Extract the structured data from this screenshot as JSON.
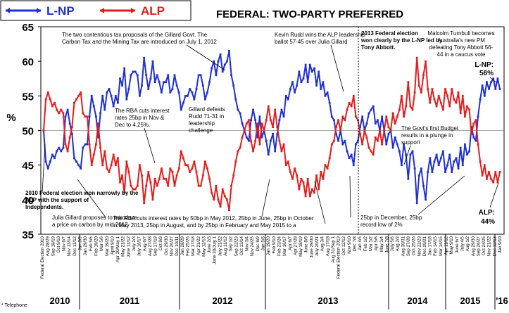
{
  "chart_data": {
    "type": "line",
    "title": "FEDERAL: TWO-PARTY PREFERRED",
    "ylabel": "%",
    "ylim": [
      35,
      65
    ],
    "yticks": [
      35,
      40,
      45,
      50,
      55,
      60,
      65
    ],
    "legend": {
      "placement": "top-left"
    },
    "colors": {
      "L-NP": "#1f2fd6",
      "ALP": "#e61b1b"
    },
    "series": [
      {
        "name": "L-NP",
        "color": "#1f2fd6",
        "values": [
          50,
          45.5,
          44.5,
          45.5,
          46.5,
          46,
          47,
          47.5,
          47,
          47.5,
          52,
          53,
          51,
          49.5,
          46,
          45.5,
          45,
          44.5,
          47.5,
          48,
          48,
          52,
          55,
          53.5,
          52,
          49,
          52.5,
          55,
          53,
          55.5,
          56,
          55,
          53.5,
          55,
          54,
          57.5,
          56.5,
          59,
          54.5,
          56,
          58,
          58.5,
          58.5,
          58,
          55,
          56.5,
          60.5,
          58,
          56,
          57.5,
          60,
          57,
          58,
          57,
          55.5,
          57,
          57,
          58,
          55.5,
          56,
          58,
          56.5,
          55.5,
          53,
          54,
          55,
          55,
          56,
          55.5,
          54.5,
          56,
          58,
          58,
          56.5,
          54.5,
          55.5,
          57,
          59,
          60,
          58,
          60,
          61,
          58.5,
          59.5,
          60,
          61.5,
          58,
          56.5,
          54.5,
          53,
          52.5,
          51,
          50,
          49,
          48.5,
          51.5,
          53,
          51.5,
          49,
          52,
          49,
          50,
          48.5,
          46.5,
          48.5,
          49.5,
          47,
          49.5,
          51.5,
          53,
          52,
          55,
          54.5,
          56,
          57,
          55.5,
          56.5,
          58.5,
          57,
          57.5,
          59.5,
          57,
          59.5,
          58.5,
          59,
          56.5,
          58.5,
          56,
          57,
          55,
          55.5,
          54,
          52,
          51.5,
          49.5,
          48.5,
          50,
          48,
          48.5,
          47,
          46,
          46.5,
          45,
          48,
          48.5,
          50.5,
          52,
          50,
          51,
          52.5,
          53,
          53.5,
          51,
          51.5,
          50,
          52,
          50,
          48,
          49.5,
          50,
          47.5,
          49,
          48,
          47,
          45,
          48,
          46.5,
          43,
          46.5,
          47,
          44.5,
          39.5,
          43.5,
          44.5,
          42,
          40,
          44,
          46,
          44,
          45.5,
          46.5,
          45,
          46,
          47,
          44,
          45,
          46.5,
          44,
          45.5,
          46,
          44.5,
          47.5,
          45,
          48,
          46.5,
          47,
          50.5,
          49,
          48.5,
          52,
          54.5,
          56.5,
          55,
          57,
          56,
          57,
          57.5,
          56,
          57.5,
          56
        ],
        "end_label": "L-NP: 56%"
      },
      {
        "name": "ALP",
        "color": "#e61b1b",
        "values": [
          50,
          54.5,
          55.5,
          54.5,
          53.5,
          54,
          53,
          52.5,
          53,
          52.5,
          48,
          47,
          49,
          50.5,
          54,
          54.5,
          55,
          55.5,
          52.5,
          52,
          52,
          48,
          45,
          46.5,
          48,
          51,
          47.5,
          45,
          47,
          44.5,
          44,
          45,
          46.5,
          45,
          46,
          42.5,
          43.5,
          41,
          45.5,
          44,
          42,
          41.5,
          41.5,
          42,
          45,
          43.5,
          39.5,
          42,
          44,
          42.5,
          40,
          43,
          42,
          43,
          44.5,
          43,
          43,
          42,
          44.5,
          44,
          42,
          43.5,
          44.5,
          47,
          46,
          45,
          45,
          44,
          44.5,
          45.5,
          44,
          42,
          42,
          43.5,
          45.5,
          44.5,
          43,
          41,
          40,
          42,
          40,
          39,
          41.5,
          40.5,
          40,
          38.5,
          42,
          43.5,
          45.5,
          47,
          47.5,
          49,
          50,
          51,
          51.5,
          48.5,
          47,
          48.5,
          51,
          48,
          51,
          50,
          51.5,
          53.5,
          51.5,
          50.5,
          53,
          50.5,
          48.5,
          47,
          48,
          45,
          45.5,
          44,
          43,
          44.5,
          43.5,
          41.5,
          43,
          42.5,
          40.5,
          43,
          40.5,
          41.5,
          41,
          43.5,
          41.5,
          44,
          43,
          45,
          44.5,
          46,
          48,
          48.5,
          50.5,
          51.5,
          50,
          52,
          51.5,
          53,
          54,
          53.5,
          55,
          52,
          51.5,
          49.5,
          48,
          50,
          49,
          47.5,
          47,
          46.5,
          49,
          48.5,
          50,
          48,
          50,
          52,
          50.5,
          50,
          52.5,
          51,
          52,
          53,
          55,
          52,
          53.5,
          57,
          53.5,
          53,
          55.5,
          60.5,
          56.5,
          55.5,
          58,
          60,
          56,
          54,
          56,
          54.5,
          53.5,
          55,
          54,
          53,
          56,
          55,
          53.5,
          56,
          54.5,
          54,
          55.5,
          52.5,
          55,
          52,
          53.5,
          53,
          49.5,
          51,
          51.5,
          48,
          45.5,
          43.5,
          45,
          43,
          44,
          43,
          42.5,
          44,
          42.5,
          44
        ],
        "end_label": "ALP: 44%"
      }
    ],
    "x_tick_labels": [
      "Federal Election 2010",
      "Aug 28/29",
      "Sep 18/19",
      "Oct 9/10",
      "Nov 6/7",
      "Nov 13/14",
      "Dec 11/12",
      "Jan 8/9",
      "Jan 29/30",
      "Feb 5/6",
      "Feb 19/20",
      "Mar 5/6",
      "Mar 19/20",
      "April 9/10",
      "Apr 30/May 1",
      "May 21/22",
      "June 11/12",
      "July 2/3",
      "July 16/17",
      "Aug 6/7",
      "Aug 27/28",
      "Sep 17/18",
      "Oct 8/9",
      "Oct 29/30",
      "Nov 26/27",
      "Dec 10/11",
      "Jan 28/29",
      "Feb 25/26",
      "Mar 17/18",
      "Apr 21/22",
      "May 12/13",
      "June 2/3",
      "June 30/July 1",
      "July 21/22",
      "Aug 11/12",
      "Sep 1/2",
      "Sep 22/23",
      "Oct 13/14",
      "Nov 3/4",
      "Nov 24/25",
      "Dec 8/9",
      "Jan 5/6",
      "Jan 19/20",
      "Feb 9/10",
      "Feb 23/24",
      "Mar 16/17",
      "Apr 6/7",
      "Apr 27/28",
      "May 18/19",
      "June 8/9",
      "June 29/30",
      "July 20/21",
      "Aug 3/4",
      "Aug 17/18",
      "Aug 31/Sep 1",
      "Federal Election 2013",
      "Oct 12/13",
      "Nov 9/10",
      "Dec 7/8",
      "Jan 4/5",
      "Feb 1/2",
      "Mar 1/2",
      "Apr 5/6",
      "May 3/4",
      "June 7/8",
      "July 5/6",
      "Aug 2/3",
      "Aug 30/31",
      "Sep 27/28",
      "Oct 25/26",
      "Nov 22/23",
      "Dec 20/21",
      "Jan 17/18",
      "Feb 14/15",
      "Mar 14/15",
      "Apr 11/12",
      "May 9/10",
      "June 6/7",
      "July 4/5",
      "Aug 1/2",
      "Aug 29/30",
      "Sep 26/27",
      "Oct 24/25",
      "Nov 21/22",
      "Dec 12/13",
      "Jan 9/10"
    ],
    "year_labels": [
      "2010",
      "2011",
      "2012",
      "2013",
      "2014",
      "2015",
      "'16"
    ],
    "annotations": {
      "a_2010_election": "2010 Federal election won narrowly by the ALP with the support of Independents.",
      "a_gillard_carbon": "Julia Gillard proposes to introduce a price on carbon by mid 2012",
      "a_tax_proposals": "The two contentious tax proposals of the Gillard Govt. The Carbon Tax and the Mining Tax are introduced on July 1, 2012",
      "a_rba_cut_2011": "The RBA cuts interest rates 25bp in Nov & Dec to 4.25%.",
      "a_gillard_defeats": "Gillard defeats Rudd 71-31 in leadership challenge",
      "a_rba_cut_2012": "The RBA cuts interest rates by 50bp in May 2012, 25bp in June, 25bp in October in May 2013, 25bp in August, and by 25bp in February and May 2015 to a",
      "a_rba_record": "25bp in December, 25bp record low of 2%",
      "a_rudd_wins": "Kevin Rudd wins the ALP leadership ballot 57-45 over Julia Gillard",
      "a_2013_election": "2013 Federal election won clearly by the L-NP led by Tony Abbott.",
      "a_first_budget": "The Govt's first Budget results in a plunge in support",
      "a_turnbull": "Malcolm Turnbull becomes Australia's new PM defeating Tony Abbott 56-44 in a caucus vote"
    },
    "footnote": "* Telephone"
  }
}
